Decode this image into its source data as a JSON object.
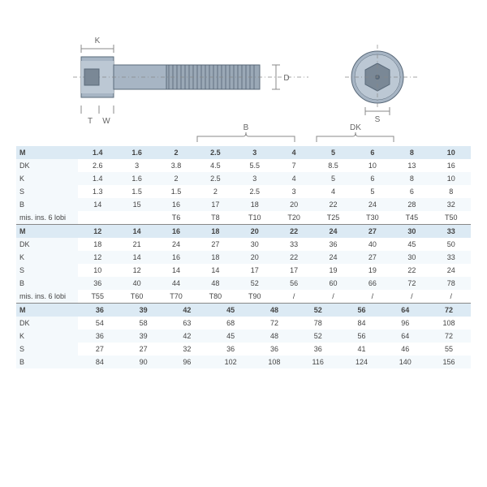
{
  "diagram": {
    "labels": {
      "K": "K",
      "T": "T",
      "W": "W",
      "D": "D",
      "S": "S",
      "B": "B",
      "DK": "DK"
    },
    "colors": {
      "bolt_body": "#a7b5c4",
      "bolt_outline": "#5a6a7a",
      "thread": "#4a5a6a",
      "dashed": "#888888"
    }
  },
  "table": {
    "header_bg": "#dceaf4",
    "alt_bg": "#f4f9fc",
    "text_color": "#444444",
    "font_size": 9,
    "row_labels": [
      "M",
      "DK",
      "K",
      "S",
      "B",
      "mis. ins. 6 lobi"
    ],
    "block1": {
      "cols": 10,
      "rows": [
        [
          "1.4",
          "1.6",
          "2",
          "2.5",
          "3",
          "4",
          "5",
          "6",
          "8",
          "10"
        ],
        [
          "2.6",
          "3",
          "3.8",
          "4.5",
          "5.5",
          "7",
          "8.5",
          "10",
          "13",
          "16"
        ],
        [
          "1.4",
          "1.6",
          "2",
          "2.5",
          "3",
          "4",
          "5",
          "6",
          "8",
          "10"
        ],
        [
          "1.3",
          "1.5",
          "1.5",
          "2",
          "2.5",
          "3",
          "4",
          "5",
          "6",
          "8"
        ],
        [
          "14",
          "15",
          "16",
          "17",
          "18",
          "20",
          "22",
          "24",
          "28",
          "32"
        ],
        [
          "",
          "",
          "T6",
          "T8",
          "T10",
          "T20",
          "T25",
          "T30",
          "T45",
          "T50"
        ]
      ]
    },
    "block2": {
      "cols": 10,
      "rows": [
        [
          "12",
          "14",
          "16",
          "18",
          "20",
          "22",
          "24",
          "27",
          "30",
          "33"
        ],
        [
          "18",
          "21",
          "24",
          "27",
          "30",
          "33",
          "36",
          "40",
          "45",
          "50"
        ],
        [
          "12",
          "14",
          "16",
          "18",
          "20",
          "22",
          "24",
          "27",
          "30",
          "33"
        ],
        [
          "10",
          "12",
          "14",
          "14",
          "17",
          "17",
          "19",
          "19",
          "22",
          "24"
        ],
        [
          "36",
          "40",
          "44",
          "48",
          "52",
          "56",
          "60",
          "66",
          "72",
          "78"
        ],
        [
          "T55",
          "T60",
          "T70",
          "T80",
          "T90",
          "/",
          "/",
          "/",
          "/",
          "/"
        ]
      ]
    },
    "block3": {
      "cols": 9,
      "row_labels": [
        "M",
        "DK",
        "K",
        "S",
        "B"
      ],
      "rows": [
        [
          "36",
          "39",
          "42",
          "45",
          "48",
          "52",
          "56",
          "64",
          "72"
        ],
        [
          "54",
          "58",
          "63",
          "68",
          "72",
          "78",
          "84",
          "96",
          "108"
        ],
        [
          "36",
          "39",
          "42",
          "45",
          "48",
          "52",
          "56",
          "64",
          "72"
        ],
        [
          "27",
          "27",
          "32",
          "36",
          "36",
          "36",
          "41",
          "46",
          "55"
        ],
        [
          "84",
          "90",
          "96",
          "102",
          "108",
          "116",
          "124",
          "140",
          "156"
        ]
      ]
    }
  }
}
